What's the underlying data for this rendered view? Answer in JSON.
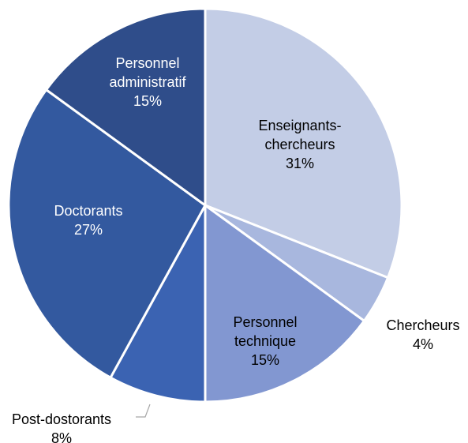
{
  "chart_data": {
    "type": "pie",
    "categories": [
      "Enseignants-chercheurs",
      "Chercheurs",
      "Personnel technique",
      "Post-dostorants",
      "Doctorants",
      "Personnel administratif"
    ],
    "values": [
      31,
      4,
      15,
      8,
      27,
      15
    ],
    "value_labels": [
      "31%",
      "4%",
      "15%",
      "8%",
      "27%",
      "15%"
    ],
    "colors": [
      "#c3cde6",
      "#a8b7de",
      "#8297d1",
      "#3b63b2",
      "#33599f",
      "#2f4d8a"
    ]
  }
}
